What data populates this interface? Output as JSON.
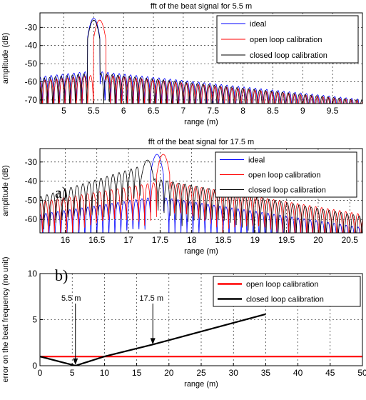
{
  "panel_labels": [
    "a)",
    "b)"
  ],
  "chart_data": [
    {
      "type": "line",
      "title": "fft of the beat signal for 5.5 m",
      "xlabel": "range (m)",
      "ylabel": "amplitude (dB)",
      "xlim": [
        4.6,
        10.0
      ],
      "ylim": [
        -72,
        -22
      ],
      "xticks": [
        5,
        5.5,
        6,
        6.5,
        7,
        7.5,
        8,
        8.5,
        9,
        9.5
      ],
      "xticklabels": [
        "5",
        "5.5",
        "6",
        "6.5",
        "7",
        "7.5",
        "8",
        "8.5",
        "9",
        "9.5"
      ],
      "yticks": [
        -70,
        -60,
        -50,
        -40,
        -30
      ],
      "yticklabels": [
        "-70",
        "-60",
        "-50",
        "-40",
        "-30"
      ],
      "grid": true,
      "legend_position": "top-right",
      "series": [
        {
          "name": "ideal",
          "color": "#0000ff",
          "peak_x": 5.5,
          "peak_db": -25,
          "sidelobe_start_db": -54,
          "sidelobe_decay_per_m": 3.5
        },
        {
          "name": "open loop calibration",
          "color": "#ff0000",
          "peak_x": 5.6,
          "peak_db": -26,
          "sidelobe_start_db": -56,
          "sidelobe_decay_per_m": 3.3
        },
        {
          "name": "closed loop calibration",
          "color": "#000000",
          "peak_x": 5.5,
          "peak_db": -26,
          "sidelobe_start_db": -55,
          "sidelobe_decay_per_m": 3.4
        }
      ]
    },
    {
      "type": "line",
      "title": "fft of the beat signal for 17.5 m",
      "xlabel": "range (m)",
      "ylabel": "amplitude (dB)",
      "xlim": [
        15.6,
        20.7
      ],
      "ylim": [
        -67,
        -23
      ],
      "xticks": [
        16,
        16.5,
        17,
        17.5,
        18,
        18.5,
        19,
        19.5,
        20,
        20.5
      ],
      "xticklabels": [
        "16",
        "16.5",
        "17",
        "17.5",
        "18",
        "18.5",
        "19",
        "19.5",
        "20",
        "20.5"
      ],
      "yticks": [
        -60,
        -50,
        -40,
        -30
      ],
      "yticklabels": [
        "-60",
        "-50",
        "-40",
        "-30"
      ],
      "grid": true,
      "legend_position": "top-right",
      "series": [
        {
          "name": "ideal",
          "color": "#0000ff",
          "peak_x": 17.45,
          "peak_db": -26,
          "sidelobe_start_db": -48,
          "sidelobe_decay_per_m": 5.0
        },
        {
          "name": "open loop calibration",
          "color": "#ff0000",
          "peak_x": 17.55,
          "peak_db": -26,
          "sidelobe_start_db": -40,
          "sidelobe_decay_per_m": 5.5
        },
        {
          "name": "closed loop calibration",
          "color": "#000000",
          "peak_x": 17.3,
          "peak_db": -29,
          "sidelobe_start_db": -38,
          "sidelobe_decay_per_m": 6.0
        }
      ]
    },
    {
      "type": "line",
      "title": "",
      "xlabel": "range (m)",
      "ylabel": "error on the beat frequency (no unit)",
      "xlim": [
        0,
        50
      ],
      "ylim": [
        0,
        10
      ],
      "xticks": [
        0,
        5,
        10,
        15,
        20,
        25,
        30,
        35,
        40,
        45,
        50
      ],
      "xticklabels": [
        "0",
        "5",
        "10",
        "15",
        "20",
        "25",
        "30",
        "35",
        "40",
        "45",
        "50"
      ],
      "yticks": [
        0,
        5,
        10
      ],
      "yticklabels": [
        "0",
        "5",
        "10"
      ],
      "grid": true,
      "legend_position": "top-right",
      "series": [
        {
          "name": "open loop calibration",
          "color": "#ff0000",
          "x": [
            0,
            50
          ],
          "y": [
            1,
            1
          ]
        },
        {
          "name": "closed loop calibration",
          "color": "#000000",
          "x": [
            0,
            5.5,
            10,
            17.5,
            35
          ],
          "y": [
            1,
            0,
            1,
            2.3,
            5.6
          ]
        }
      ],
      "annotations": [
        {
          "text": "5.5 m",
          "x": 5.5,
          "y": 0.1
        },
        {
          "text": "17.5 m",
          "x": 17.5,
          "y": 2.3
        }
      ]
    }
  ]
}
